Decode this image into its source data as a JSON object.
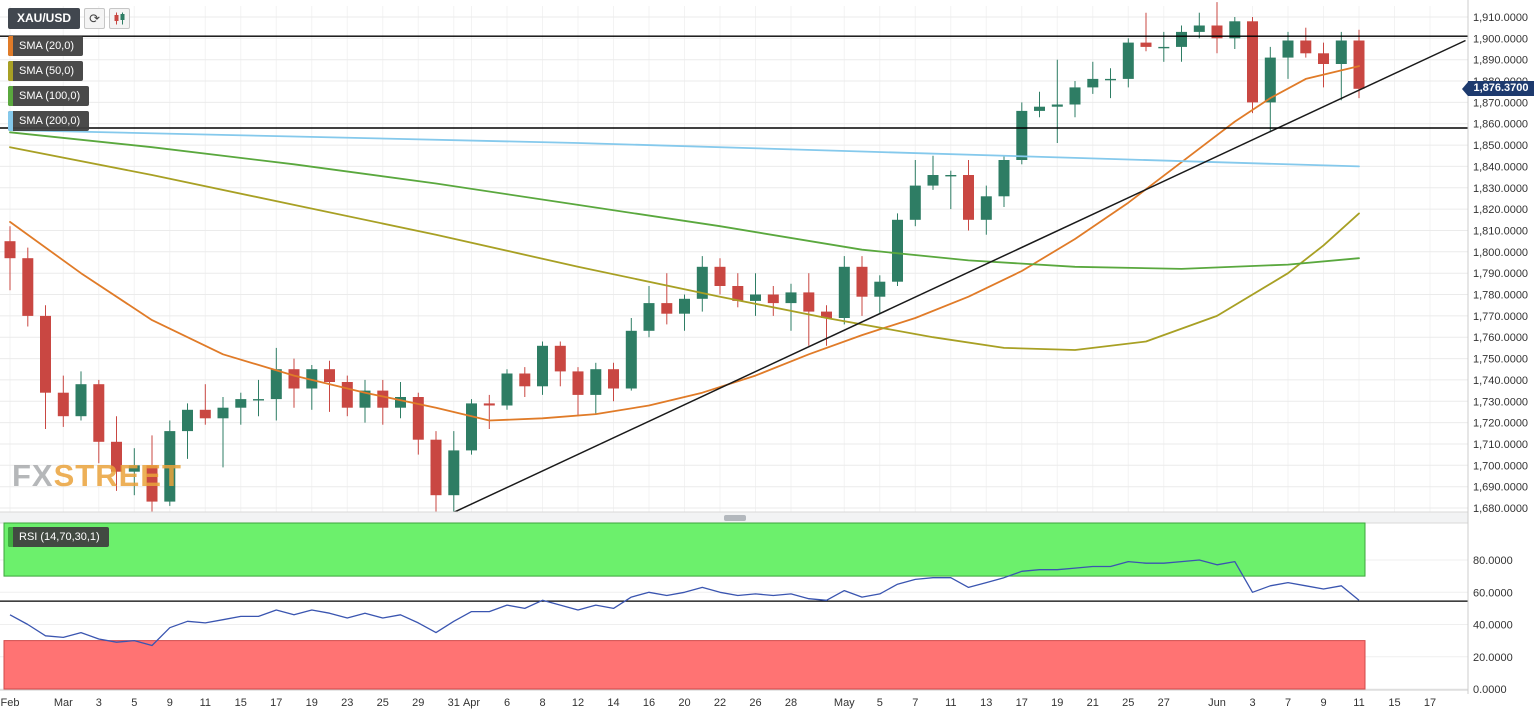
{
  "app": {
    "symbol": "XAU/USD",
    "watermark_fx": "FX",
    "watermark_street": "STREET"
  },
  "icons": {
    "refresh": "⟳"
  },
  "legend": {
    "sma": [
      {
        "label": "SMA (20,0)",
        "color": "#e07b28"
      },
      {
        "label": "SMA (50,0)",
        "color": "#a8a024"
      },
      {
        "label": "SMA (100,0)",
        "color": "#5aa83e"
      },
      {
        "label": "SMA (200,0)",
        "color": "#85c9ec"
      }
    ],
    "rsi_label": "RSI (14,70,30,1)",
    "rsi_color": "#3fae3f"
  },
  "colors": {
    "bull": "#2e7d64",
    "bear": "#c94742",
    "rsi_line": "#3a55b0",
    "trendline": "#1a1a1a",
    "hline": "#000000",
    "overbought_fill": "#6cf06c",
    "overbought_stroke": "#3da53d",
    "oversold_fill": "#ff7373",
    "oversold_stroke": "#d24a4a",
    "price_badge_bg": "#1d3a6e",
    "grid": "#ebebeb",
    "axis_text": "#333333"
  },
  "chart_data": {
    "type": "candlestick",
    "symbol": "XAU/USD",
    "price_range": [
      1680,
      1910
    ],
    "current_price": 1876.37,
    "current_price_label": "1,876.3700",
    "price_ticks": [
      {
        "v": 1910,
        "label": "1,910.0000"
      },
      {
        "v": 1900,
        "label": "1,900.0000"
      },
      {
        "v": 1890,
        "label": "1,890.0000"
      },
      {
        "v": 1880,
        "label": "1,880.0000"
      },
      {
        "v": 1870,
        "label": "1,870.0000"
      },
      {
        "v": 1860,
        "label": "1,860.0000"
      },
      {
        "v": 1850,
        "label": "1,850.0000"
      },
      {
        "v": 1840,
        "label": "1,840.0000"
      },
      {
        "v": 1830,
        "label": "1,830.0000"
      },
      {
        "v": 1820,
        "label": "1,820.0000"
      },
      {
        "v": 1810,
        "label": "1,810.0000"
      },
      {
        "v": 1800,
        "label": "1,800.0000"
      },
      {
        "v": 1790,
        "label": "1,790.0000"
      },
      {
        "v": 1780,
        "label": "1,780.0000"
      },
      {
        "v": 1770,
        "label": "1,770.0000"
      },
      {
        "v": 1760,
        "label": "1,760.0000"
      },
      {
        "v": 1750,
        "label": "1,750.0000"
      },
      {
        "v": 1740,
        "label": "1,740.0000"
      },
      {
        "v": 1730,
        "label": "1,730.0000"
      },
      {
        "v": 1720,
        "label": "1,720.0000"
      },
      {
        "v": 1710,
        "label": "1,710.0000"
      },
      {
        "v": 1700,
        "label": "1,700.0000"
      },
      {
        "v": 1690,
        "label": "1,690.0000"
      },
      {
        "v": 1680,
        "label": "1,680.0000"
      }
    ],
    "x_ticks": [
      {
        "i": 0,
        "label": "Feb"
      },
      {
        "i": 3,
        "label": "Mar"
      },
      {
        "i": 5,
        "label": "3"
      },
      {
        "i": 7,
        "label": "5"
      },
      {
        "i": 9,
        "label": "9"
      },
      {
        "i": 11,
        "label": "11"
      },
      {
        "i": 13,
        "label": "15"
      },
      {
        "i": 15,
        "label": "17"
      },
      {
        "i": 17,
        "label": "19"
      },
      {
        "i": 19,
        "label": "23"
      },
      {
        "i": 21,
        "label": "25"
      },
      {
        "i": 23,
        "label": "29"
      },
      {
        "i": 25,
        "label": "31"
      },
      {
        "i": 26,
        "label": "Apr"
      },
      {
        "i": 28,
        "label": "6"
      },
      {
        "i": 30,
        "label": "8"
      },
      {
        "i": 32,
        "label": "12"
      },
      {
        "i": 34,
        "label": "14"
      },
      {
        "i": 36,
        "label": "16"
      },
      {
        "i": 38,
        "label": "20"
      },
      {
        "i": 40,
        "label": "22"
      },
      {
        "i": 42,
        "label": "26"
      },
      {
        "i": 44,
        "label": "28"
      },
      {
        "i": 47,
        "label": "May"
      },
      {
        "i": 49,
        "label": "5"
      },
      {
        "i": 51,
        "label": "7"
      },
      {
        "i": 53,
        "label": "11"
      },
      {
        "i": 55,
        "label": "13"
      },
      {
        "i": 57,
        "label": "17"
      },
      {
        "i": 59,
        "label": "19"
      },
      {
        "i": 61,
        "label": "21"
      },
      {
        "i": 63,
        "label": "25"
      },
      {
        "i": 65,
        "label": "27"
      },
      {
        "i": 68,
        "label": "Jun"
      },
      {
        "i": 70,
        "label": "3"
      },
      {
        "i": 72,
        "label": "7"
      },
      {
        "i": 74,
        "label": "9"
      },
      {
        "i": 76,
        "label": "11"
      },
      {
        "i": 78,
        "label": "15"
      },
      {
        "i": 80,
        "label": "17"
      }
    ],
    "ohlc": [
      [
        1805,
        1812,
        1782,
        1797
      ],
      [
        1797,
        1802,
        1765,
        1770
      ],
      [
        1770,
        1775,
        1717,
        1734
      ],
      [
        1734,
        1742,
        1718,
        1723
      ],
      [
        1723,
        1744,
        1721,
        1738
      ],
      [
        1738,
        1740,
        1701,
        1711
      ],
      [
        1711,
        1723,
        1688,
        1697
      ],
      [
        1697,
        1708,
        1686,
        1700
      ],
      [
        1700,
        1714,
        1676,
        1683
      ],
      [
        1683,
        1721,
        1681,
        1716
      ],
      [
        1716,
        1729,
        1703,
        1726
      ],
      [
        1726,
        1738,
        1719,
        1722
      ],
      [
        1722,
        1732,
        1699,
        1727
      ],
      [
        1727,
        1734,
        1719,
        1731
      ],
      [
        1731,
        1740,
        1723,
        1731
      ],
      [
        1731,
        1755,
        1721,
        1745
      ],
      [
        1745,
        1750,
        1727,
        1736
      ],
      [
        1736,
        1747,
        1726,
        1745
      ],
      [
        1745,
        1749,
        1725,
        1739
      ],
      [
        1739,
        1742,
        1723,
        1727
      ],
      [
        1727,
        1740,
        1720,
        1735
      ],
      [
        1735,
        1740,
        1719,
        1727
      ],
      [
        1727,
        1739,
        1722,
        1732
      ],
      [
        1732,
        1734,
        1705,
        1712
      ],
      [
        1712,
        1716,
        1678,
        1686
      ],
      [
        1686,
        1716,
        1677,
        1707
      ],
      [
        1707,
        1731,
        1705,
        1729
      ],
      [
        1729,
        1733,
        1717,
        1728
      ],
      [
        1728,
        1745,
        1726,
        1743
      ],
      [
        1743,
        1746,
        1732,
        1737
      ],
      [
        1737,
        1758,
        1733,
        1756
      ],
      [
        1756,
        1758,
        1737,
        1744
      ],
      [
        1744,
        1746,
        1723,
        1733
      ],
      [
        1733,
        1748,
        1724,
        1745
      ],
      [
        1745,
        1748,
        1730,
        1736
      ],
      [
        1736,
        1769,
        1735,
        1763
      ],
      [
        1763,
        1784,
        1760,
        1776
      ],
      [
        1776,
        1790,
        1766,
        1771
      ],
      [
        1771,
        1780,
        1763,
        1778
      ],
      [
        1778,
        1798,
        1772,
        1793
      ],
      [
        1793,
        1797,
        1780,
        1784
      ],
      [
        1784,
        1790,
        1774,
        1777
      ],
      [
        1777,
        1790,
        1770,
        1780
      ],
      [
        1780,
        1784,
        1770,
        1776
      ],
      [
        1776,
        1785,
        1763,
        1781
      ],
      [
        1781,
        1790,
        1756,
        1772
      ],
      [
        1772,
        1775,
        1756,
        1769
      ],
      [
        1769,
        1798,
        1766,
        1793
      ],
      [
        1793,
        1798,
        1770,
        1779
      ],
      [
        1779,
        1789,
        1771,
        1786
      ],
      [
        1786,
        1818,
        1784,
        1815
      ],
      [
        1815,
        1843,
        1812,
        1831
      ],
      [
        1831,
        1845,
        1829,
        1836
      ],
      [
        1836,
        1838,
        1820,
        1836
      ],
      [
        1836,
        1843,
        1810,
        1815
      ],
      [
        1815,
        1831,
        1808,
        1826
      ],
      [
        1826,
        1845,
        1821,
        1843
      ],
      [
        1843,
        1870,
        1841,
        1866
      ],
      [
        1866,
        1875,
        1863,
        1868
      ],
      [
        1868,
        1890,
        1851,
        1869
      ],
      [
        1869,
        1880,
        1863,
        1877
      ],
      [
        1877,
        1889,
        1874,
        1881
      ],
      [
        1881,
        1886,
        1872,
        1881
      ],
      [
        1881,
        1900,
        1877,
        1898
      ],
      [
        1898,
        1912,
        1894,
        1896
      ],
      [
        1896,
        1903,
        1889,
        1896
      ],
      [
        1896,
        1906,
        1889,
        1903
      ],
      [
        1903,
        1912,
        1900,
        1906
      ],
      [
        1906,
        1917,
        1893,
        1900
      ],
      [
        1900,
        1910,
        1895,
        1908
      ],
      [
        1908,
        1910,
        1865,
        1870
      ],
      [
        1870,
        1896,
        1856,
        1891
      ],
      [
        1891,
        1903,
        1881,
        1899
      ],
      [
        1899,
        1905,
        1891,
        1893
      ],
      [
        1893,
        1898,
        1877,
        1888
      ],
      [
        1888,
        1903,
        1871,
        1899
      ],
      [
        1899,
        1904,
        1872,
        1876.37
      ]
    ],
    "sma": [
      {
        "name": "sma-20",
        "label": "SMA (20,0)",
        "color": "#e07b28",
        "points": [
          [
            0,
            1814
          ],
          [
            4,
            1790
          ],
          [
            8,
            1768
          ],
          [
            12,
            1752
          ],
          [
            16,
            1742
          ],
          [
            20,
            1734
          ],
          [
            24,
            1727
          ],
          [
            27,
            1721
          ],
          [
            30,
            1722
          ],
          [
            33,
            1724
          ],
          [
            36,
            1728
          ],
          [
            39,
            1734
          ],
          [
            42,
            1742
          ],
          [
            45,
            1752
          ],
          [
            48,
            1761
          ],
          [
            51,
            1769
          ],
          [
            54,
            1779
          ],
          [
            57,
            1791
          ],
          [
            60,
            1806
          ],
          [
            63,
            1823
          ],
          [
            66,
            1842
          ],
          [
            69,
            1861
          ],
          [
            71,
            1872
          ],
          [
            73,
            1881
          ],
          [
            76,
            1887
          ]
        ]
      },
      {
        "name": "sma-50",
        "label": "SMA (50,0)",
        "color": "#a8a024",
        "points": [
          [
            0,
            1849
          ],
          [
            8,
            1836
          ],
          [
            16,
            1822
          ],
          [
            24,
            1808
          ],
          [
            32,
            1793
          ],
          [
            40,
            1779
          ],
          [
            46,
            1769
          ],
          [
            52,
            1760
          ],
          [
            56,
            1755
          ],
          [
            60,
            1754
          ],
          [
            64,
            1758
          ],
          [
            68,
            1770
          ],
          [
            72,
            1790
          ],
          [
            74,
            1803
          ],
          [
            76,
            1818
          ]
        ]
      },
      {
        "name": "sma-100",
        "label": "SMA (100,0)",
        "color": "#5aa83e",
        "points": [
          [
            0,
            1856
          ],
          [
            8,
            1849
          ],
          [
            16,
            1841
          ],
          [
            24,
            1832
          ],
          [
            32,
            1822
          ],
          [
            40,
            1812
          ],
          [
            48,
            1801
          ],
          [
            54,
            1796
          ],
          [
            60,
            1793
          ],
          [
            66,
            1792
          ],
          [
            72,
            1794
          ],
          [
            76,
            1797
          ]
        ]
      },
      {
        "name": "sma-200",
        "label": "SMA (200,0)",
        "color": "#85c9ec",
        "points": [
          [
            0,
            1857
          ],
          [
            16,
            1854
          ],
          [
            32,
            1851
          ],
          [
            48,
            1847
          ],
          [
            60,
            1844
          ],
          [
            68,
            1842
          ],
          [
            76,
            1840
          ]
        ]
      }
    ],
    "trendline": {
      "from": [
        25,
        1678
      ],
      "to": [
        82,
        1899
      ]
    },
    "hlines": [
      1901,
      1858
    ],
    "rsi": {
      "values": [
        46,
        40,
        33,
        32,
        35,
        31,
        29,
        30,
        27,
        38,
        42,
        41,
        43,
        45,
        45,
        49,
        46,
        49,
        47,
        44,
        47,
        44,
        46,
        41,
        35,
        42,
        48,
        48,
        52,
        50,
        55,
        52,
        49,
        52,
        50,
        57,
        60,
        58,
        60,
        63,
        60,
        58,
        59,
        58,
        59,
        56,
        55,
        61,
        57,
        59,
        65,
        68,
        69,
        69,
        63,
        66,
        69,
        73,
        74,
        74,
        75,
        76,
        76,
        79,
        78,
        78,
        79,
        80,
        77,
        79,
        60,
        64,
        66,
        64,
        62,
        64,
        55
      ],
      "overbought": 70,
      "oversold": 30,
      "level_line": 54.5,
      "ticks": [
        {
          "v": 80,
          "label": "80.0000"
        },
        {
          "v": 60,
          "label": "60.0000"
        },
        {
          "v": 40,
          "label": "40.0000"
        },
        {
          "v": 20,
          "label": "20.0000"
        },
        {
          "v": 0,
          "label": "0.0000"
        }
      ]
    }
  }
}
